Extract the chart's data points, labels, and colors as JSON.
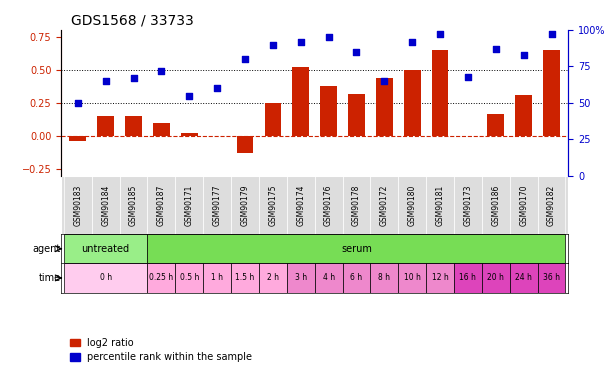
{
  "title": "GDS1568 / 33733",
  "samples": [
    "GSM90183",
    "GSM90184",
    "GSM90185",
    "GSM90187",
    "GSM90171",
    "GSM90177",
    "GSM90179",
    "GSM90175",
    "GSM90174",
    "GSM90176",
    "GSM90178",
    "GSM90172",
    "GSM90180",
    "GSM90181",
    "GSM90173",
    "GSM90186",
    "GSM90170",
    "GSM90182"
  ],
  "log2_ratio": [
    -0.04,
    0.15,
    0.15,
    0.1,
    0.02,
    0.0,
    -0.13,
    0.25,
    0.52,
    0.38,
    0.32,
    0.44,
    0.5,
    0.65,
    0.0,
    0.17,
    0.31,
    0.65
  ],
  "pct_rank": [
    50,
    65,
    67,
    72,
    55,
    60,
    80,
    90,
    92,
    95,
    85,
    65,
    92,
    97,
    68,
    87,
    83,
    97
  ],
  "ylim_left": [
    -0.3,
    0.8
  ],
  "ylim_right": [
    0,
    100
  ],
  "yticks_left": [
    -0.25,
    0.0,
    0.25,
    0.5,
    0.75
  ],
  "yticks_right": [
    0,
    25,
    50,
    75,
    100
  ],
  "hlines": [
    0.25,
    0.5
  ],
  "bar_color": "#cc2200",
  "dot_color": "#0000cc",
  "agent_groups": [
    {
      "label": "untreated",
      "start": 0,
      "end": 3,
      "color": "#99ee88"
    },
    {
      "label": "serum",
      "start": 3,
      "end": 18,
      "color": "#77dd55"
    }
  ],
  "time_labels": [
    "0 h",
    "0.25 h",
    "0.5 h",
    "1 h",
    "1.5 h",
    "2 h",
    "3 h",
    "4 h",
    "6 h",
    "8 h",
    "10 h",
    "12 h",
    "16 h",
    "20 h",
    "24 h",
    "36 h"
  ],
  "time_positions": [
    {
      "label": "0 h",
      "start": 0,
      "end": 3,
      "color": "#ffccee"
    },
    {
      "label": "0.25 h",
      "start": 3,
      "end": 4,
      "color": "#ffaadd"
    },
    {
      "label": "0.5 h",
      "start": 4,
      "end": 5,
      "color": "#ffaadd"
    },
    {
      "label": "1 h",
      "start": 5,
      "end": 6,
      "color": "#ffaadd"
    },
    {
      "label": "1.5 h",
      "start": 6,
      "end": 7,
      "color": "#ffaadd"
    },
    {
      "label": "2 h",
      "start": 7,
      "end": 8,
      "color": "#ffaadd"
    },
    {
      "label": "3 h",
      "start": 8,
      "end": 9,
      "color": "#ee88cc"
    },
    {
      "label": "4 h",
      "start": 9,
      "end": 10,
      "color": "#ee88cc"
    },
    {
      "label": "6 h",
      "start": 10,
      "end": 11,
      "color": "#ee88cc"
    },
    {
      "label": "8 h",
      "start": 11,
      "end": 12,
      "color": "#ee88cc"
    },
    {
      "label": "10 h",
      "start": 12,
      "end": 13,
      "color": "#ee88cc"
    },
    {
      "label": "12 h",
      "start": 13,
      "end": 14,
      "color": "#ee88cc"
    },
    {
      "label": "16 h",
      "start": 14,
      "end": 15,
      "color": "#dd44bb"
    },
    {
      "label": "20 h",
      "start": 15,
      "end": 16,
      "color": "#dd44bb"
    },
    {
      "label": "24 h",
      "start": 16,
      "end": 17,
      "color": "#dd44bb"
    },
    {
      "label": "36 h",
      "start": 17,
      "end": 18,
      "color": "#dd44bb"
    }
  ],
  "legend_items": [
    {
      "label": "log2 ratio",
      "color": "#cc2200"
    },
    {
      "label": "percentile rank within the sample",
      "color": "#0000cc"
    }
  ],
  "bg_color": "#ffffff",
  "grid_color": "#cccccc",
  "sample_bg_color": "#dddddd"
}
